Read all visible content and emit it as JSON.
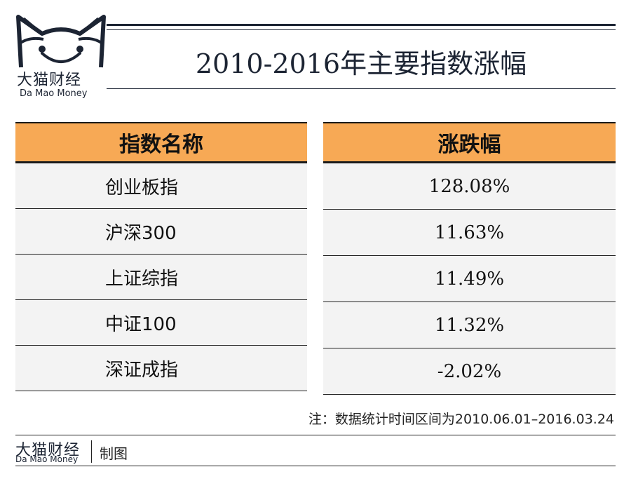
{
  "brand": {
    "cn": "大猫财经",
    "en": "Da Mao Money",
    "icon": "cat-face-logo"
  },
  "title": "2010-2016年主要指数涨幅",
  "colors": {
    "header_bg": "#f7a955",
    "row_bg": "#f3f3f3",
    "navy": "#1c2433"
  },
  "chart_data": {
    "type": "table",
    "title": "2010-2016年主要指数涨幅",
    "columns": [
      "指数名称",
      "涨跌幅"
    ],
    "rows": [
      {
        "name": "创业板指",
        "change": "128.08%"
      },
      {
        "name": "沪深300",
        "change": "11.63%"
      },
      {
        "name": "上证综指",
        "change": "11.49%"
      },
      {
        "name": "中证100",
        "change": "11.32%"
      },
      {
        "name": "深证成指",
        "change": "-2.02%"
      }
    ]
  },
  "note": "注：数据统计时间区间为2010.06.01–2016.03.24",
  "footer": {
    "brand_cn": "大猫财经",
    "brand_en": "Da Mao Money",
    "made_by": "制图"
  }
}
